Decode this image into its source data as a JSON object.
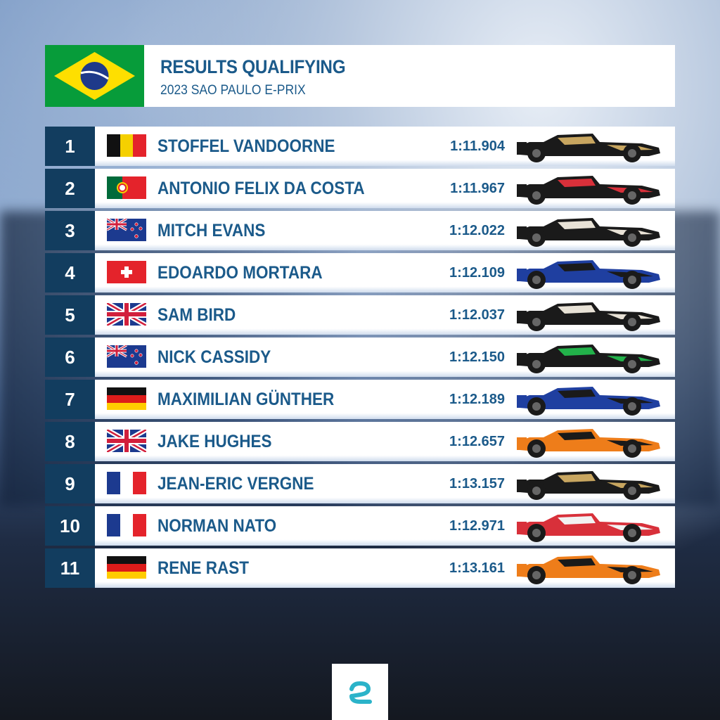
{
  "header": {
    "title": "RESULTS QUALIFYING",
    "subtitle": "2023 SAO PAULO E-PRIX"
  },
  "table": {
    "rows": [
      [
        "1",
        "STOFFEL VANDOORNE",
        "1:11.904"
      ],
      [
        "2",
        "ANTONIO FELIX DA COSTA",
        "1:11.967"
      ],
      [
        "3",
        "MITCH EVANS",
        "1:12.022"
      ],
      [
        "4",
        "EDOARDO MORTARA",
        "1:12.109"
      ],
      [
        "5",
        "SAM BIRD",
        "1:12.037"
      ],
      [
        "6",
        "NICK CASSIDY",
        "1:12.150"
      ],
      [
        "7",
        "MAXIMILIAN GÜNTHER",
        "1:12.189"
      ],
      [
        "8",
        "JAKE HUGHES",
        "1:12.657"
      ],
      [
        "9",
        "JEAN-ERIC VERGNE",
        "1:13.157"
      ],
      [
        "10",
        "NORMAN NATO",
        "1:12.971"
      ],
      [
        "11",
        "RENE RAST",
        "1:13.161"
      ]
    ]
  }
}
